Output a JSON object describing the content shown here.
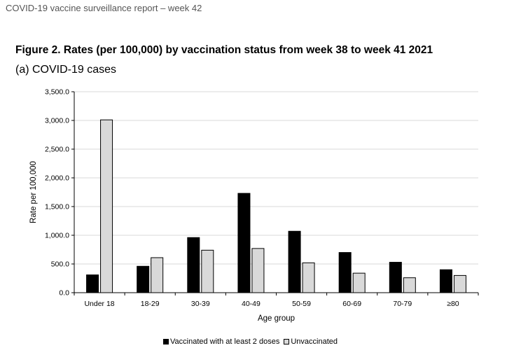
{
  "header": {
    "report_title": "COVID-19 vaccine surveillance report – week 42"
  },
  "figure": {
    "title": "Figure 2. Rates (per 100,000) by vaccination status from week 38 to week 41 2021",
    "subtitle": "(a) COVID-19 cases"
  },
  "colors": {
    "vaccinated": "#000000",
    "unvaccinated": "#d9d9d9",
    "grid": "#d9d9d9"
  },
  "chart_data": {
    "type": "bar",
    "title": "(a) COVID-19 cases",
    "xlabel": "Age group",
    "ylabel": "Rate per 100,000",
    "ylim": [
      0,
      3500
    ],
    "yticks": [
      0,
      500,
      1000,
      1500,
      2000,
      2500,
      3000,
      3500
    ],
    "ytick_labels": [
      "0.0",
      "500.0",
      "1,000.0",
      "1,500.0",
      "2,000.0",
      "2,500.0",
      "3,000.0",
      "3,500.0"
    ],
    "grid": true,
    "legend_position": "bottom",
    "categories": [
      "Under 18",
      "18-29",
      "30-39",
      "40-49",
      "50-59",
      "60-69",
      "70-79",
      "≥80"
    ],
    "series": [
      {
        "name": "Vaccinated with at least 2 doses",
        "values": [
          310,
          460,
          960,
          1730,
          1070,
          700,
          530,
          400
        ]
      },
      {
        "name": "Unvaccinated",
        "values": [
          3010,
          610,
          740,
          770,
          520,
          340,
          260,
          300
        ]
      }
    ]
  }
}
